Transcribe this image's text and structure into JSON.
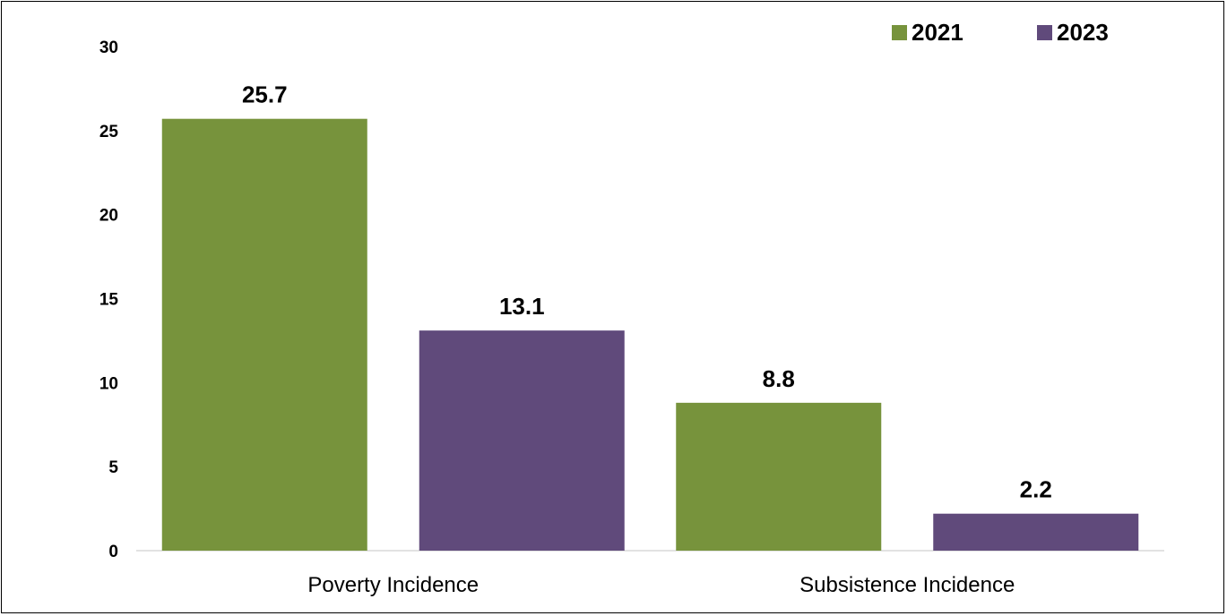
{
  "chart_data": {
    "type": "bar",
    "title": "",
    "xlabel": "",
    "ylabel": "",
    "categories": [
      "Poverty Incidence",
      "Subsistence Incidence"
    ],
    "series": [
      {
        "name": "2021",
        "color": "#77933c",
        "values": [
          25.7,
          8.8
        ]
      },
      {
        "name": "2023",
        "color": "#604a7b",
        "values": [
          13.1,
          2.2
        ]
      }
    ],
    "ylim": [
      0,
      30
    ],
    "yticks": [
      0,
      5,
      10,
      15,
      20,
      25,
      30
    ],
    "data_labels": [
      "25.7",
      "13.1",
      "8.8",
      "2.2"
    ],
    "grid": false,
    "legend": "top-right"
  }
}
